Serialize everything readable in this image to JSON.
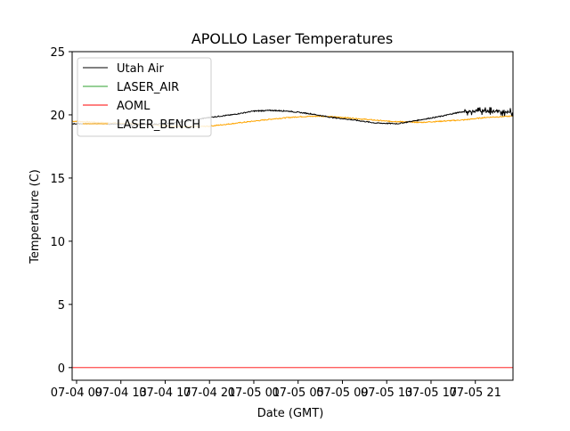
{
  "chart_data": {
    "type": "line",
    "title": "APOLLO Laser Temperatures",
    "xlabel": "Date (GMT)",
    "ylabel": "Temperature (C)",
    "x_units": "hours since 07-04 00:00",
    "xlim": [
      8.6,
      48.4
    ],
    "ylim": [
      -1,
      25
    ],
    "yticks": [
      0,
      5,
      10,
      15,
      20,
      25
    ],
    "xticks": [
      {
        "x": 9,
        "label": "07-04 09"
      },
      {
        "x": 13,
        "label": "07-04 13"
      },
      {
        "x": 17,
        "label": "07-04 17"
      },
      {
        "x": 21,
        "label": "07-04 21"
      },
      {
        "x": 25,
        "label": "07-05 01"
      },
      {
        "x": 29,
        "label": "07-05 05"
      },
      {
        "x": 33,
        "label": "07-05 09"
      },
      {
        "x": 37,
        "label": "07-05 13"
      },
      {
        "x": 41,
        "label": "07-05 17"
      },
      {
        "x": 45,
        "label": "07-05 21"
      }
    ],
    "grid": false,
    "legend_position": "upper-left",
    "series": [
      {
        "name": "Utah Air",
        "color": "#000000",
        "x": [
          8.6,
          11,
          14,
          17,
          19,
          21,
          23,
          25,
          26.5,
          28,
          30,
          32,
          34,
          36,
          38,
          40,
          42,
          43.5,
          45,
          46.5,
          48.4
        ],
        "y": [
          19.3,
          19.3,
          19.2,
          19.3,
          19.5,
          19.8,
          20.0,
          20.3,
          20.35,
          20.3,
          20.1,
          19.8,
          19.6,
          19.35,
          19.3,
          19.6,
          19.9,
          20.2,
          20.3,
          20.3,
          20.2
        ]
      },
      {
        "name": "LASER_AIR",
        "color": "#2ca02c",
        "x": [],
        "y": []
      },
      {
        "name": "AOML",
        "color": "#ff0000",
        "x": [
          8.6,
          48.4
        ],
        "y": [
          0,
          0
        ]
      },
      {
        "name": "LASER_BENCH",
        "color": "#ffa500",
        "x": [
          8.6,
          11,
          14,
          17,
          19,
          21,
          23,
          25,
          27,
          29,
          31,
          33,
          35,
          37,
          38.5,
          40,
          42,
          44,
          46,
          48.4
        ],
        "y": [
          19.5,
          19.4,
          19.3,
          19.15,
          19.05,
          19.1,
          19.3,
          19.5,
          19.7,
          19.85,
          19.9,
          19.8,
          19.65,
          19.5,
          19.45,
          19.4,
          19.5,
          19.6,
          19.8,
          19.9
        ]
      }
    ]
  }
}
